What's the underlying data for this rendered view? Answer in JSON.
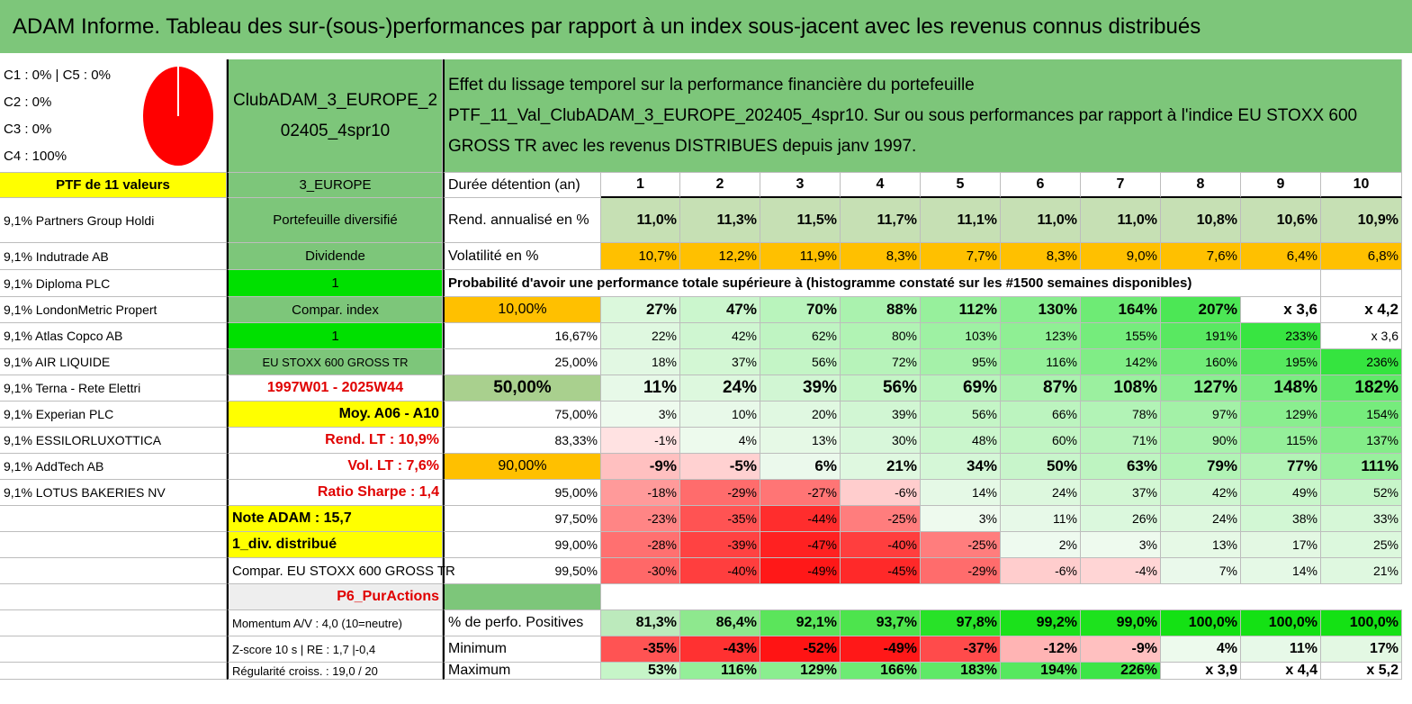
{
  "title": "ADAM Informe. Tableau des sur-(sous-)performances par rapport à un index sous-jacent avec les revenus connus distribués",
  "legend": [
    "C1 : 0% | C5 : 0%",
    "C2 : 0%",
    "C3 : 0%",
    "C4 : 100%"
  ],
  "pie_color": "#ff0000",
  "portfolio_name": "ClubADAM_3_EUROPE_202405_4spr10",
  "description": "Effet du lissage temporel sur la performance financière du portefeuille PTF_11_Val_ClubADAM_3_EUROPE_202405_4spr10. Sur ou sous performances par rapport à l'indice EU STOXX 600 GROSS TR avec les revenus DISTRIBUES depuis janv 1997.",
  "col1": [
    "PTF de 11 valeurs",
    "9,1% Partners Group Holdi",
    "9,1% Indutrade AB",
    "9,1% Diploma PLC",
    "9,1% LondonMetric Propert",
    "9,1% Atlas Copco AB",
    "9,1% AIR LIQUIDE",
    "9,1% Terna - Rete Elettri",
    "9,1% Experian PLC",
    "9,1% ESSILORLUXOTTICA",
    "9,1% AddTech AB",
    "9,1% LOTUS BAKERIES NV",
    "",
    "",
    "",
    "",
    "",
    "",
    ""
  ],
  "col2": [
    "3_EUROPE",
    "Portefeuille diversifié",
    "Dividende",
    "1",
    "Compar. index",
    "1",
    "EU STOXX 600 GROSS TR",
    "1997W01 - 2025W44",
    "Moy. A06 - A10",
    "Rend. LT : 10,9%",
    "Vol. LT : 7,6%",
    "Ratio Sharpe : 1,4",
    "Note ADAM : 15,7",
    "1_div. distribué",
    "Compar. EU STOXX 600 GROSS TR",
    "P6_PurActions",
    "Momentum A/V : 4,0 (10=neutre)",
    "Z-score 10 s | RE : 1,7 |-0,4",
    "Régularité croiss. : 19,0 / 20"
  ],
  "header_row": {
    "label": "Durée détention (an)",
    "years": [
      "1",
      "2",
      "3",
      "4",
      "5",
      "6",
      "7",
      "8",
      "9",
      "10"
    ]
  },
  "rend_row": {
    "label": "Rend. annualisé en %",
    "values": [
      "11,0%",
      "11,3%",
      "11,5%",
      "11,7%",
      "11,1%",
      "11,0%",
      "11,0%",
      "10,8%",
      "10,6%",
      "10,9%"
    ]
  },
  "vol_row": {
    "label": "Volatilité en %",
    "values": [
      "10,7%",
      "12,2%",
      "11,9%",
      "8,3%",
      "7,7%",
      "8,3%",
      "9,0%",
      "7,6%",
      "6,4%",
      "6,8%"
    ]
  },
  "prob_text": "Probabilité d'avoir une performance totale supérieure à (histogramme constaté sur les #1500 semaines disponibles)",
  "prob_rows": [
    {
      "label": "10,00%",
      "values": [
        "27%",
        "47%",
        "70%",
        "88%",
        "112%",
        "130%",
        "164%",
        "207%",
        "x 3,6",
        "x 4,2"
      ]
    },
    {
      "label": "16,67%",
      "values": [
        "22%",
        "42%",
        "62%",
        "80%",
        "103%",
        "123%",
        "155%",
        "191%",
        "233%",
        "x 3,6"
      ]
    },
    {
      "label": "25,00%",
      "values": [
        "18%",
        "37%",
        "56%",
        "72%",
        "95%",
        "116%",
        "142%",
        "160%",
        "195%",
        "236%"
      ]
    },
    {
      "label": "50,00%",
      "values": [
        "11%",
        "24%",
        "39%",
        "56%",
        "69%",
        "87%",
        "108%",
        "127%",
        "148%",
        "182%"
      ]
    },
    {
      "label": "75,00%",
      "values": [
        "3%",
        "10%",
        "20%",
        "39%",
        "56%",
        "66%",
        "78%",
        "97%",
        "129%",
        "154%"
      ]
    },
    {
      "label": "83,33%",
      "values": [
        "-1%",
        "4%",
        "13%",
        "30%",
        "48%",
        "60%",
        "71%",
        "90%",
        "115%",
        "137%"
      ]
    },
    {
      "label": "90,00%",
      "values": [
        "-9%",
        "-5%",
        "6%",
        "21%",
        "34%",
        "50%",
        "63%",
        "79%",
        "77%",
        "111%"
      ]
    },
    {
      "label": "95,00%",
      "values": [
        "-18%",
        "-29%",
        "-27%",
        "-6%",
        "14%",
        "24%",
        "37%",
        "42%",
        "49%",
        "52%"
      ]
    },
    {
      "label": "97,50%",
      "values": [
        "-23%",
        "-35%",
        "-44%",
        "-25%",
        "3%",
        "11%",
        "26%",
        "24%",
        "38%",
        "33%"
      ]
    },
    {
      "label": "99,00%",
      "values": [
        "-28%",
        "-39%",
        "-47%",
        "-40%",
        "-25%",
        "2%",
        "3%",
        "13%",
        "17%",
        "25%"
      ]
    },
    {
      "label": "99,50%",
      "values": [
        "-30%",
        "-40%",
        "-49%",
        "-45%",
        "-29%",
        "-6%",
        "-4%",
        "7%",
        "14%",
        "21%"
      ]
    }
  ],
  "pos_row": {
    "label": "% de perfo. Positives",
    "values": [
      "81,3%",
      "86,4%",
      "92,1%",
      "93,7%",
      "97,8%",
      "99,2%",
      "99,0%",
      "100,0%",
      "100,0%",
      "100,0%"
    ]
  },
  "min_row": {
    "label": "Minimum",
    "values": [
      "-35%",
      "-43%",
      "-52%",
      "-49%",
      "-37%",
      "-12%",
      "-9%",
      "4%",
      "11%",
      "17%"
    ]
  },
  "max_row": {
    "label": "Maximum",
    "values": [
      "53%",
      "116%",
      "129%",
      "166%",
      "183%",
      "194%",
      "226%",
      "x 3,9",
      "x 4,4",
      "x 5,2"
    ]
  }
}
